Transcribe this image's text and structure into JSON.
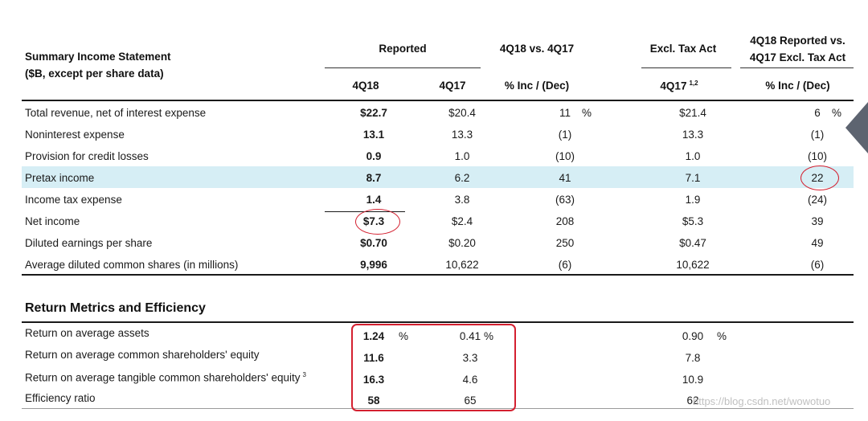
{
  "header": {
    "title_line1": "Summary Income Statement",
    "title_line2": "($B, except per share data)",
    "reported": "Reported",
    "q18_vs_q17": "4Q18 vs. 4Q17",
    "excl_tax_act": "Excl. Tax Act",
    "reported_vs_excl_line1": "4Q18 Reported vs.",
    "reported_vs_excl_line2": "4Q17 Excl. Tax Act",
    "col_4q18": "4Q18",
    "col_4q17": "4Q17",
    "col_pct": "% Inc / (Dec)",
    "col_4q17_excl": "4Q17",
    "col_4q17_excl_sup": "1,2",
    "col_pct2": "% Inc / (Dec)"
  },
  "income_rows": [
    {
      "label": "Total revenue, net of interest expense",
      "q18": "$22.7",
      "q17": "$20.4",
      "pct": "11",
      "pct_sign": "%",
      "excl": "$21.4",
      "pct2": "6",
      "pct2_sign": "%"
    },
    {
      "label": "Noninterest expense",
      "q18": "13.1",
      "q17": "13.3",
      "pct": "(1)",
      "excl": "13.3",
      "pct2": "(1)"
    },
    {
      "label": "Provision for credit losses",
      "q18": "0.9",
      "q17": "1.0",
      "pct": "(10)",
      "excl": "1.0",
      "pct2": "(10)"
    },
    {
      "label": "Pretax income",
      "q18": "8.7",
      "q17": "6.2",
      "pct": "41",
      "excl": "7.1",
      "pct2": "22"
    },
    {
      "label": "Income tax expense",
      "q18": "1.4",
      "q17": "3.8",
      "pct": "(63)",
      "excl": "1.9",
      "pct2": "(24)"
    },
    {
      "label": "Net income",
      "q18": "$7.3",
      "q17": "$2.4",
      "pct": "208",
      "excl": "$5.3",
      "pct2": "39"
    },
    {
      "label": "Diluted earnings per share",
      "q18": "$0.70",
      "q17": "$0.20",
      "pct": "250",
      "excl": "$0.47",
      "pct2": "49"
    },
    {
      "label": "Average diluted common shares (in millions)",
      "q18": "9,996",
      "q17": "10,622",
      "pct": "(6)",
      "excl": "10,622",
      "pct2": "(6)"
    }
  ],
  "return_section": {
    "title": "Return Metrics and Efficiency",
    "rows": [
      {
        "label": "Return on average assets",
        "q18": "1.24",
        "q18_sign": "%",
        "q17": "0.41",
        "q17_sign": "%",
        "excl": "0.90",
        "excl_sign": "%"
      },
      {
        "label": "Return on average common shareholders' equity",
        "q18": "11.6",
        "q17": "3.3",
        "excl": "7.8"
      },
      {
        "label": "Return on average tangible common shareholders' equity",
        "label_sup": "3",
        "q18": "16.3",
        "q17": "4.6",
        "excl": "10.9"
      },
      {
        "label": "Efficiency ratio",
        "q18": "58",
        "q17": "65",
        "excl": "62"
      }
    ]
  },
  "watermark": "https://blog.csdn.net/wowotuo",
  "colors": {
    "highlight": "#d6eef5",
    "annotation": "#d42030",
    "arrow": "#5d6470"
  }
}
